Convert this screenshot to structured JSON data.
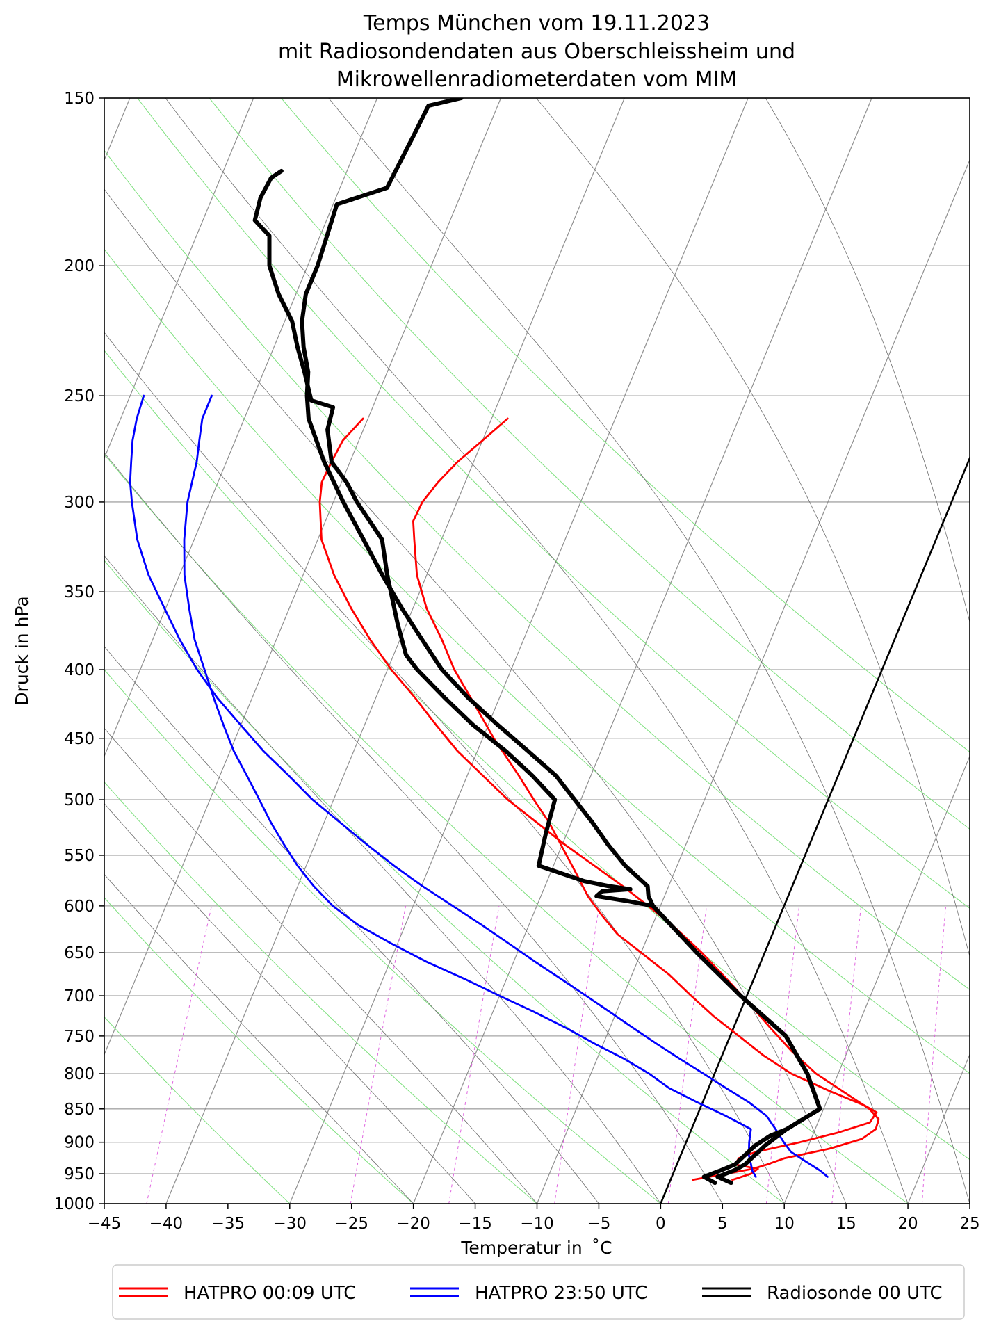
{
  "chart_data": {
    "type": "skew-t",
    "title": [
      "Temps München vom 19.11.2023",
      "mit Radiosondendaten aus Oberschleissheim und",
      "Mikrowellenradiometerdaten vom MIM"
    ],
    "xlabel": "Temperatur in  ˚C",
    "ylabel": "Druck in hPa",
    "xlim": [
      -45,
      25
    ],
    "ylim": [
      1000,
      150
    ],
    "x_ticks": [
      -45,
      -40,
      -35,
      -30,
      -25,
      -20,
      -15,
      -10,
      -5,
      0,
      5,
      10,
      15,
      20,
      25
    ],
    "x_tick_labels": [
      "−45",
      "−40",
      "−35",
      "−30",
      "−25",
      "−20",
      "−15",
      "−10",
      "−5",
      "0",
      "5",
      "10",
      "15",
      "20",
      "25"
    ],
    "y_ticks": [
      150,
      200,
      250,
      300,
      350,
      400,
      450,
      500,
      550,
      600,
      650,
      700,
      750,
      800,
      850,
      900,
      950,
      1000
    ],
    "y_tick_labels": [
      "150",
      "200",
      "250",
      "300",
      "350",
      "400",
      "450",
      "500",
      "550",
      "600",
      "650",
      "700",
      "750",
      "800",
      "850",
      "900",
      "950",
      "1000"
    ],
    "grid": true,
    "skew_deg_per_decade_p": 45,
    "isotherms_base": [
      -130,
      -120,
      -110,
      -100,
      -90,
      -80,
      -70,
      -60,
      -50,
      -40,
      -30,
      -20,
      -10,
      0,
      10,
      20,
      30,
      40
    ],
    "dry_adiabats_theta_c": [
      -30,
      -20,
      -10,
      0,
      10,
      20,
      30,
      40,
      50,
      60,
      70,
      80
    ],
    "moist_adiabats_start_c": [
      -20,
      -15,
      -10,
      -5,
      0,
      5,
      10,
      15,
      20,
      25,
      30,
      35
    ],
    "mixing_ratios_gkg": [
      0.0001,
      0.0005,
      0.001,
      0.002,
      0.004,
      0.007,
      0.01,
      0.016,
      0.024,
      0.032,
      0.045,
      0.06,
      0.08,
      0.1,
      0.13,
      0.17
    ],
    "highlight_isotherm_c": 0,
    "series": [
      {
        "name": "HATPRO 00:09 UTC",
        "color": "#ff0000",
        "kind": "temperature",
        "points": [
          [
            960,
            1.8
          ],
          [
            950,
            4.3
          ],
          [
            942,
            6.3
          ],
          [
            935,
            7.3
          ],
          [
            925,
            8.5
          ],
          [
            910,
            11.8
          ],
          [
            895,
            14.1
          ],
          [
            880,
            14.9
          ],
          [
            865,
            14.8
          ],
          [
            850,
            13.7
          ],
          [
            825,
            11.0
          ],
          [
            800,
            8.2
          ],
          [
            770,
            5.5
          ],
          [
            740,
            3.0
          ],
          [
            710,
            0.5
          ],
          [
            680,
            -2.2
          ],
          [
            650,
            -5.1
          ],
          [
            620,
            -8.4
          ],
          [
            600,
            -11.0
          ],
          [
            580,
            -13.7
          ],
          [
            560,
            -16.7
          ],
          [
            540,
            -19.8
          ],
          [
            520,
            -22.8
          ],
          [
            500,
            -25.9
          ],
          [
            480,
            -28.7
          ],
          [
            460,
            -31.6
          ],
          [
            440,
            -34.2
          ],
          [
            420,
            -36.8
          ],
          [
            400,
            -39.7
          ],
          [
            380,
            -42.4
          ],
          [
            360,
            -45.0
          ],
          [
            340,
            -47.5
          ],
          [
            320,
            -49.7
          ],
          [
            300,
            -51.1
          ],
          [
            290,
            -51.6
          ],
          [
            280,
            -51.5
          ],
          [
            270,
            -51.3
          ],
          [
            260,
            -50.4
          ]
        ]
      },
      {
        "name": "HATPRO 00:09 UTC",
        "color": "#ff0000",
        "kind": "dewpoint",
        "points": [
          [
            960,
            5.0
          ],
          [
            950,
            6.3
          ],
          [
            942,
            6.7
          ],
          [
            935,
            4.7
          ],
          [
            925,
            4.8
          ],
          [
            915,
            6.0
          ],
          [
            900,
            9.2
          ],
          [
            885,
            12.0
          ],
          [
            870,
            14.2
          ],
          [
            855,
            14.4
          ],
          [
            845,
            13.2
          ],
          [
            825,
            10.0
          ],
          [
            800,
            6.2
          ],
          [
            775,
            3.3
          ],
          [
            750,
            0.7
          ],
          [
            725,
            -2.0
          ],
          [
            700,
            -4.5
          ],
          [
            675,
            -7.0
          ],
          [
            650,
            -10.0
          ],
          [
            630,
            -12.5
          ],
          [
            610,
            -14.4
          ],
          [
            590,
            -16.2
          ],
          [
            570,
            -17.7
          ],
          [
            550,
            -19.3
          ],
          [
            520,
            -21.8
          ],
          [
            500,
            -23.8
          ],
          [
            480,
            -25.8
          ],
          [
            450,
            -29.1
          ],
          [
            420,
            -32.3
          ],
          [
            400,
            -34.6
          ],
          [
            380,
            -36.6
          ],
          [
            360,
            -38.9
          ],
          [
            340,
            -40.8
          ],
          [
            320,
            -42.2
          ],
          [
            310,
            -42.9
          ],
          [
            300,
            -42.8
          ],
          [
            290,
            -42.2
          ],
          [
            280,
            -41.3
          ],
          [
            270,
            -40.0
          ],
          [
            260,
            -38.7
          ]
        ]
      },
      {
        "name": "HATPRO 23:50 UTC",
        "color": "#0000ff",
        "kind": "temperature",
        "points": [
          [
            955,
            12.6
          ],
          [
            945,
            11.8
          ],
          [
            930,
            10.3
          ],
          [
            915,
            8.8
          ],
          [
            900,
            7.9
          ],
          [
            880,
            6.8
          ],
          [
            860,
            5.6
          ],
          [
            840,
            3.7
          ],
          [
            820,
            1.4
          ],
          [
            800,
            -0.9
          ],
          [
            780,
            -3.3
          ],
          [
            760,
            -5.7
          ],
          [
            740,
            -8.1
          ],
          [
            720,
            -10.5
          ],
          [
            700,
            -13.0
          ],
          [
            680,
            -15.6
          ],
          [
            660,
            -18.3
          ],
          [
            640,
            -21.0
          ],
          [
            620,
            -23.8
          ],
          [
            600,
            -26.8
          ],
          [
            580,
            -29.9
          ],
          [
            560,
            -32.9
          ],
          [
            540,
            -35.8
          ],
          [
            520,
            -38.7
          ],
          [
            500,
            -41.7
          ],
          [
            480,
            -44.4
          ],
          [
            460,
            -47.3
          ],
          [
            440,
            -50.0
          ],
          [
            420,
            -52.8
          ],
          [
            400,
            -55.4
          ],
          [
            380,
            -57.8
          ],
          [
            360,
            -60.1
          ],
          [
            340,
            -62.5
          ],
          [
            320,
            -64.6
          ],
          [
            300,
            -66.3
          ],
          [
            290,
            -67.1
          ],
          [
            280,
            -67.7
          ],
          [
            270,
            -68.3
          ],
          [
            260,
            -68.7
          ],
          [
            250,
            -68.9
          ]
        ]
      },
      {
        "name": "HATPRO 23:50 UTC",
        "color": "#0000ff",
        "kind": "dewpoint",
        "points": [
          [
            955,
            6.8
          ],
          [
            945,
            6.3
          ],
          [
            935,
            6.0
          ],
          [
            920,
            5.5
          ],
          [
            900,
            5.1
          ],
          [
            880,
            4.8
          ],
          [
            860,
            2.3
          ],
          [
            840,
            -0.5
          ],
          [
            820,
            -3.2
          ],
          [
            800,
            -5.3
          ],
          [
            780,
            -7.8
          ],
          [
            760,
            -10.7
          ],
          [
            740,
            -13.5
          ],
          [
            720,
            -16.6
          ],
          [
            700,
            -20.0
          ],
          [
            680,
            -23.4
          ],
          [
            660,
            -27.1
          ],
          [
            640,
            -30.5
          ],
          [
            620,
            -33.8
          ],
          [
            600,
            -36.5
          ],
          [
            580,
            -38.7
          ],
          [
            560,
            -40.7
          ],
          [
            540,
            -42.5
          ],
          [
            520,
            -44.3
          ],
          [
            500,
            -46.0
          ],
          [
            480,
            -47.8
          ],
          [
            460,
            -49.7
          ],
          [
            440,
            -51.4
          ],
          [
            420,
            -53.1
          ],
          [
            400,
            -54.8
          ],
          [
            380,
            -56.6
          ],
          [
            360,
            -58.1
          ],
          [
            340,
            -59.6
          ],
          [
            320,
            -60.8
          ],
          [
            300,
            -61.8
          ],
          [
            280,
            -62.4
          ],
          [
            270,
            -62.9
          ],
          [
            260,
            -63.4
          ],
          [
            250,
            -63.4
          ]
        ]
      },
      {
        "name": "Radiosonde 00 UTC",
        "color": "#000000",
        "kind": "temperature",
        "points": [
          [
            965,
            5.0
          ],
          [
            955,
            3.7
          ],
          [
            945,
            4.8
          ],
          [
            935,
            5.5
          ],
          [
            920,
            6.0
          ],
          [
            905,
            6.5
          ],
          [
            880,
            7.7
          ],
          [
            850,
            9.7
          ],
          [
            800,
            7.5
          ],
          [
            750,
            4.5
          ],
          [
            700,
            -0.5
          ],
          [
            650,
            -5.5
          ],
          [
            600,
            -10.6
          ],
          [
            590,
            -11.3
          ],
          [
            580,
            -11.7
          ],
          [
            560,
            -14.2
          ],
          [
            540,
            -16.3
          ],
          [
            520,
            -18.3
          ],
          [
            500,
            -20.5
          ],
          [
            480,
            -22.8
          ],
          [
            460,
            -25.9
          ],
          [
            440,
            -29.2
          ],
          [
            420,
            -32.5
          ],
          [
            400,
            -35.6
          ],
          [
            380,
            -38.2
          ],
          [
            360,
            -40.9
          ],
          [
            340,
            -43.6
          ],
          [
            320,
            -46.3
          ],
          [
            300,
            -49.2
          ],
          [
            280,
            -52.1
          ],
          [
            260,
            -54.8
          ],
          [
            250,
            -55.7
          ],
          [
            240,
            -56.4
          ],
          [
            230,
            -57.6
          ],
          [
            220,
            -58.6
          ],
          [
            210,
            -59.2
          ],
          [
            200,
            -59.2
          ],
          [
            180,
            -59.7
          ],
          [
            175,
            -56.2
          ],
          [
            160,
            -55.8
          ],
          [
            152,
            -55.6
          ],
          [
            150,
            -53.2
          ]
        ]
      },
      {
        "name": "Radiosonde 00 UTC",
        "color": "#000000",
        "kind": "dewpoint",
        "points": [
          [
            965,
            3.7
          ],
          [
            955,
            2.6
          ],
          [
            945,
            3.7
          ],
          [
            935,
            4.7
          ],
          [
            920,
            5.2
          ],
          [
            905,
            5.7
          ],
          [
            890,
            6.6
          ],
          [
            880,
            7.7
          ],
          [
            850,
            9.7
          ],
          [
            800,
            7.5
          ],
          [
            750,
            4.5
          ],
          [
            700,
            -0.5
          ],
          [
            650,
            -5.5
          ],
          [
            600,
            -10.6
          ],
          [
            595,
            -12.8
          ],
          [
            590,
            -15.5
          ],
          [
            585,
            -15.2
          ],
          [
            583,
            -13.0
          ],
          [
            580,
            -14.8
          ],
          [
            575,
            -17.0
          ],
          [
            560,
            -21.2
          ],
          [
            530,
            -21.7
          ],
          [
            500,
            -22.1
          ],
          [
            480,
            -24.7
          ],
          [
            460,
            -27.7
          ],
          [
            440,
            -31.2
          ],
          [
            420,
            -34.4
          ],
          [
            400,
            -37.6
          ],
          [
            390,
            -39.0
          ],
          [
            370,
            -40.7
          ],
          [
            340,
            -43.2
          ],
          [
            320,
            -44.8
          ],
          [
            300,
            -48.1
          ],
          [
            290,
            -49.6
          ],
          [
            280,
            -51.5
          ],
          [
            265,
            -52.9
          ],
          [
            255,
            -53.2
          ],
          [
            252,
            -55.2
          ],
          [
            240,
            -56.7
          ],
          [
            230,
            -58.1
          ],
          [
            220,
            -59.4
          ],
          [
            210,
            -61.4
          ],
          [
            200,
            -63.1
          ],
          [
            190,
            -64.1
          ],
          [
            185,
            -65.8
          ],
          [
            178,
            -66.1
          ],
          [
            172,
            -65.9
          ],
          [
            170,
            -65.3
          ]
        ]
      }
    ],
    "legend": [
      {
        "label": "HATPRO 00:09 UTC",
        "color": "#ff0000"
      },
      {
        "label": "HATPRO 23:50 UTC",
        "color": "#0000ff"
      },
      {
        "label": "Radiosonde 00 UTC",
        "color": "#000000"
      }
    ],
    "legend_position": "bottom-center"
  }
}
